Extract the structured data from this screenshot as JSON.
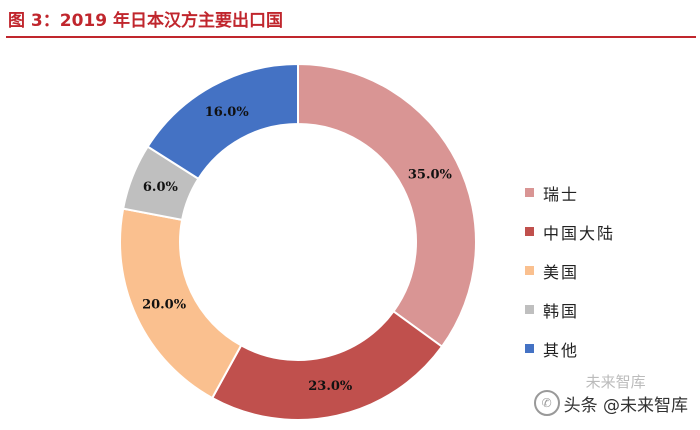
{
  "figure": {
    "title": "图  3：2019 年日本汉方主要出口国"
  },
  "chart_data": {
    "type": "pie",
    "categories": [
      "瑞士",
      "中国大陆",
      "美国",
      "韩国",
      "其他"
    ],
    "values": [
      35.0,
      23.0,
      20.0,
      6.0,
      16.0
    ],
    "value_labels": [
      "35.0%",
      "23.0%",
      "20.0%",
      "6.0%",
      "16.0%"
    ],
    "colors": [
      "#d99594",
      "#c0504d",
      "#fac08f",
      "#bfbfbf",
      "#4472c4"
    ],
    "title": "2019 年日本汉方主要出口国",
    "legend": "right",
    "style": "donut",
    "start": "top, clockwise"
  },
  "watermark": {
    "icon": "wechat-icon",
    "top_text": "未来智库",
    "bottom_text": "头条 @未来智库"
  }
}
